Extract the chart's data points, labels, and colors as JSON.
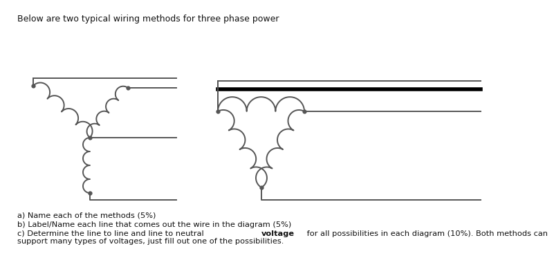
{
  "title_text": "Below are two typical wiring methods for three phase power",
  "title_fontsize": 9,
  "bg_color": "#ffffff",
  "line_color": "#555555",
  "line_color_thick": "#000000",
  "line_lw": 1.4,
  "line_lw_thick": 4.0,
  "dot_size": 3.5,
  "questions_line1": "a) Name each of the methods (5%)",
  "questions_line2": "b) Label/Name each line that comes out the wire in the diagram (5%)",
  "questions_line3_pre": "c) Determine the line to line and line to neutral ",
  "questions_line3_bold": "voltage",
  "questions_line3_post": " for all possibilities in each diagram (10%). Both methods can",
  "questions_line4": "support many types of voltages, just fill out one of the possibilities.",
  "q_fontsize": 8.2
}
